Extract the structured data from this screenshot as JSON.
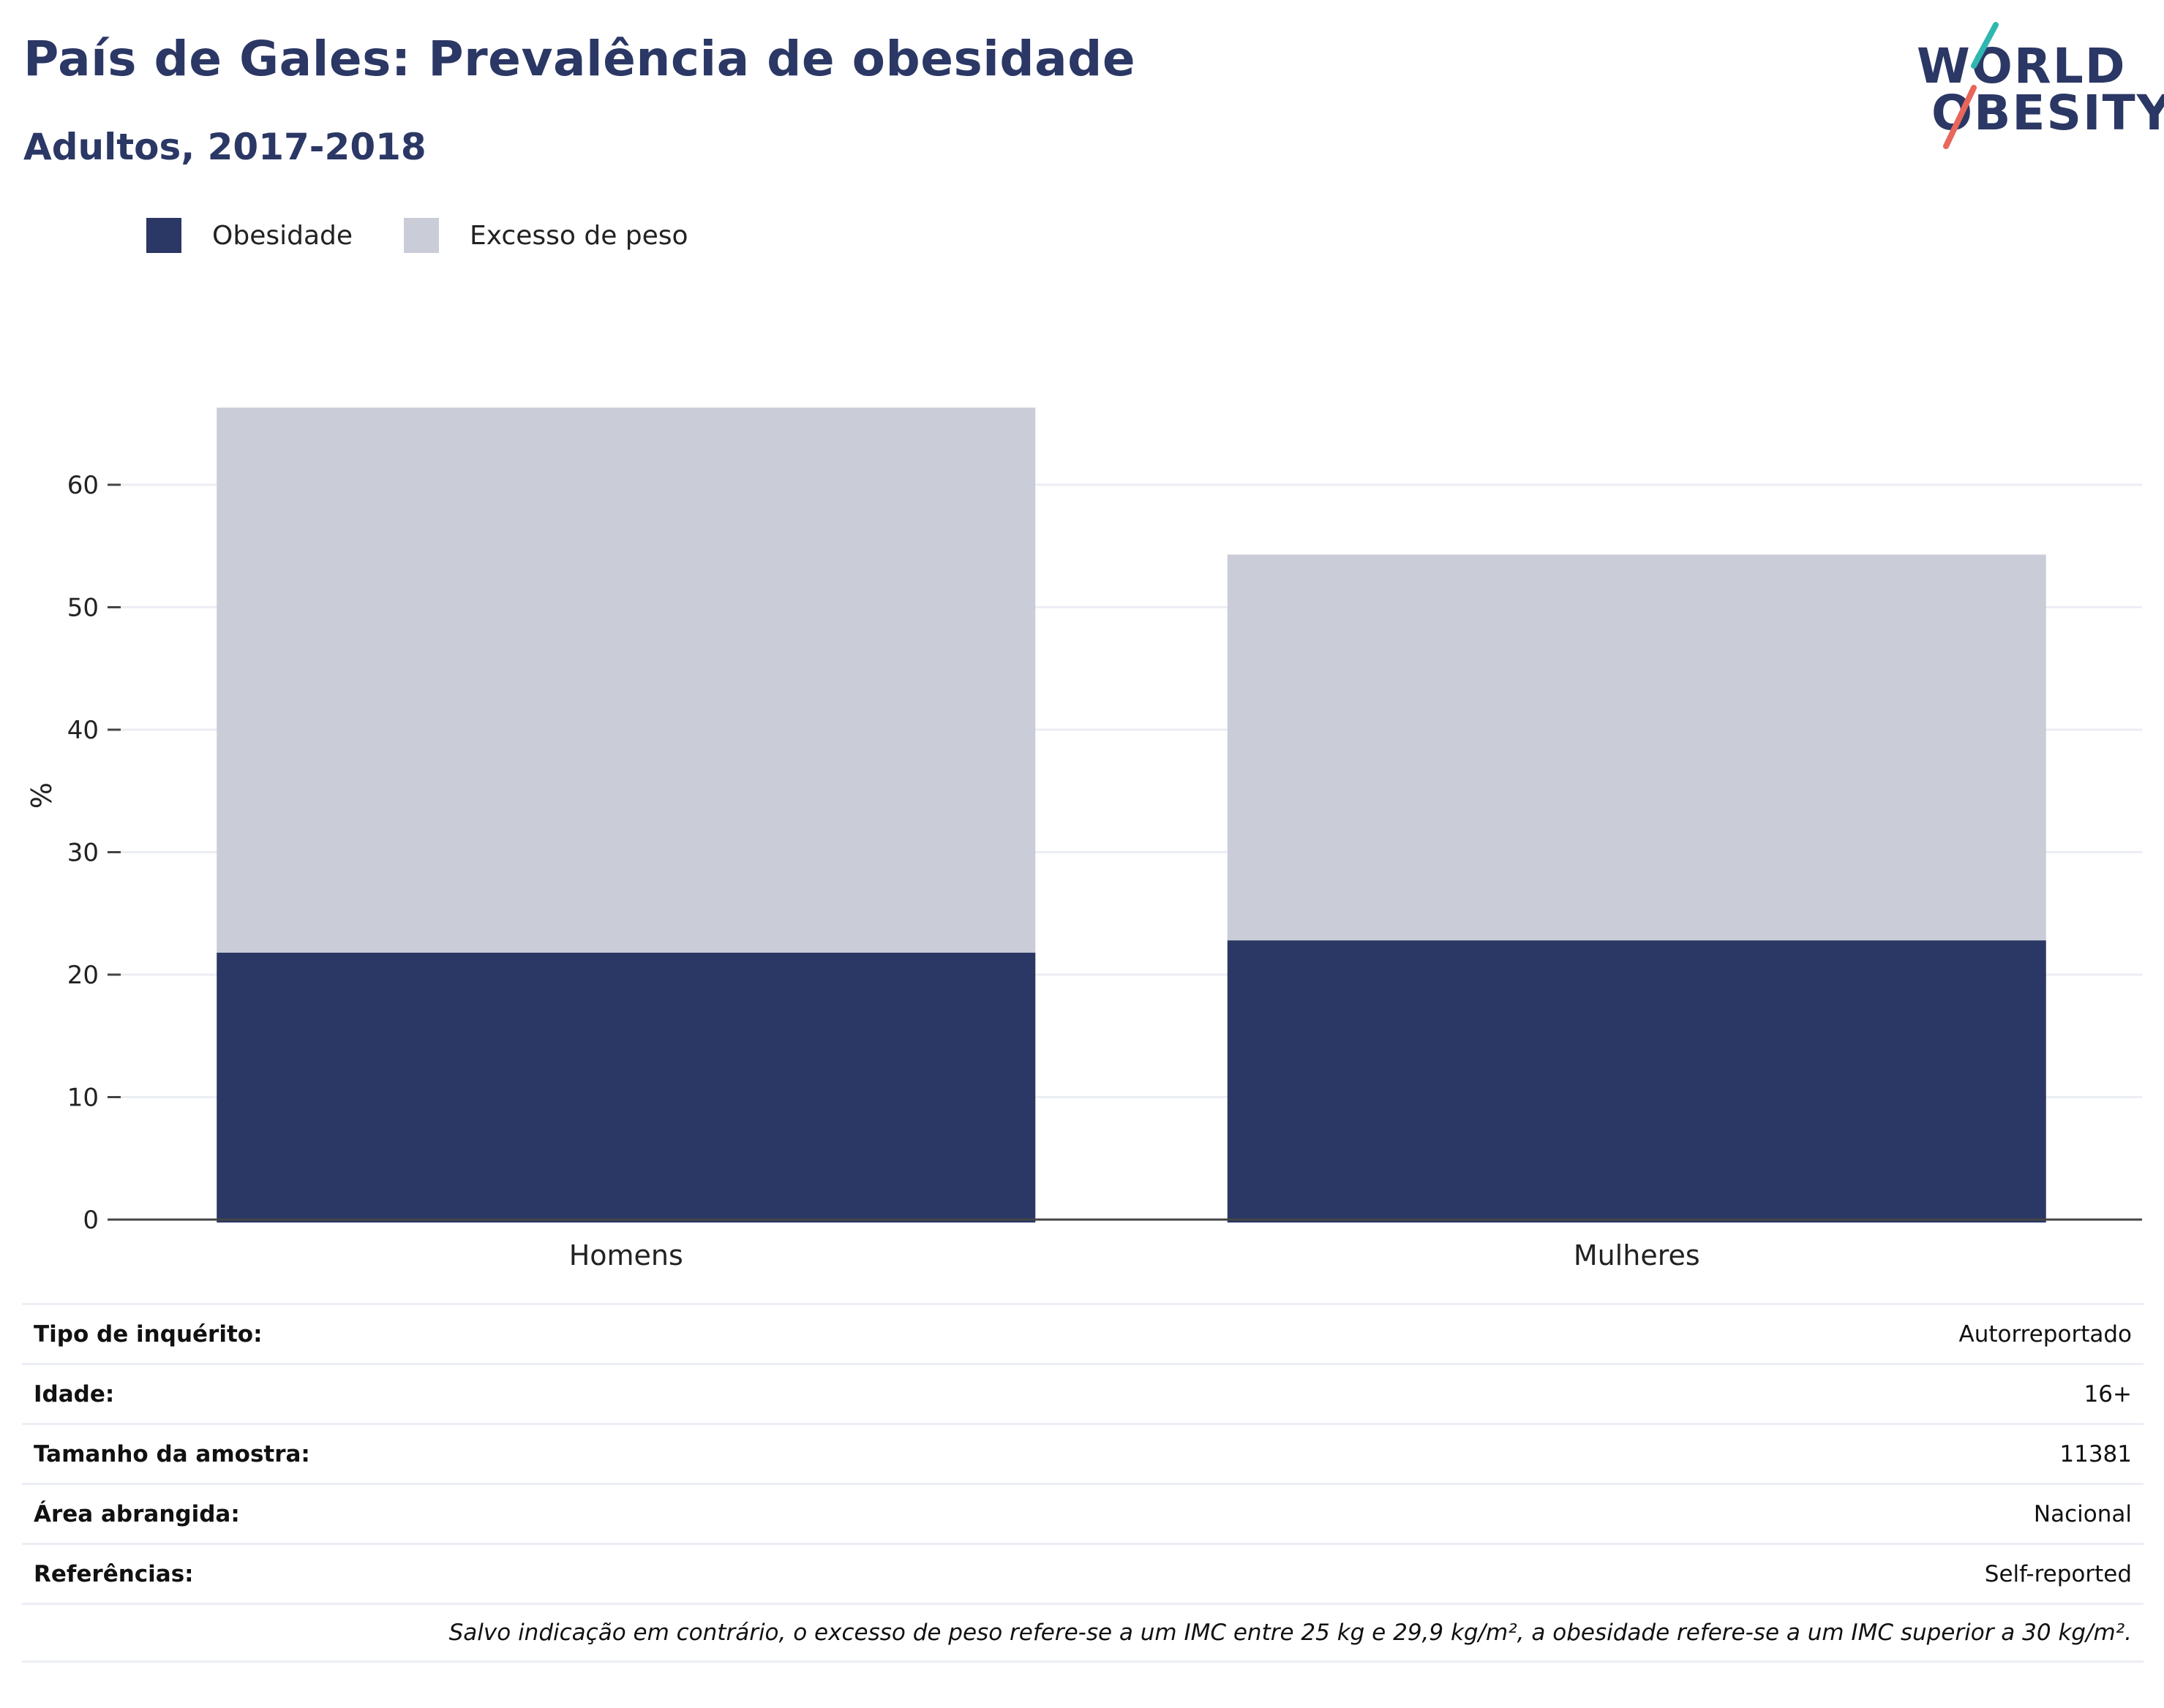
{
  "title": "País de Gales: Prevalência de obesidade",
  "subtitle": "Adultos, 2017-2018",
  "logo": {
    "line1": "WORLD",
    "line2": "OBESITY"
  },
  "colors": {
    "obesity": "#2b3764",
    "overweight": "#cacdd8",
    "title": "#2b3764",
    "grid": "#eceef5",
    "logo_teal": "#2fb7b0",
    "logo_coral": "#e8665a"
  },
  "legend": [
    {
      "label": "Obesidade",
      "color": "#2b3764"
    },
    {
      "label": "Excesso de peso",
      "color": "#cacdd8"
    }
  ],
  "chart_data": {
    "type": "bar",
    "stacked": true,
    "categories": [
      "Homens",
      "Mulheres"
    ],
    "series": [
      {
        "name": "Obesidade",
        "values": [
          21.8,
          22.8
        ]
      },
      {
        "name": "Excesso de peso",
        "values": [
          44.5,
          31.5
        ]
      }
    ],
    "ylabel": "%",
    "xlabel": "",
    "ylim": [
      0,
      70
    ],
    "yticks": [
      0,
      10,
      20,
      30,
      40,
      50,
      60
    ],
    "grid": true,
    "legend_position": "top-left"
  },
  "info_rows": [
    {
      "key": "Tipo de inquérito:",
      "value": "Autorreportado"
    },
    {
      "key": "Idade:",
      "value": "16+"
    },
    {
      "key": "Tamanho da amostra:",
      "value": "11381"
    },
    {
      "key": "Área abrangida:",
      "value": "Nacional"
    },
    {
      "key": "Referências:",
      "value": "Self-reported"
    }
  ],
  "note": "Salvo indicação em contrário, o excesso de peso refere-se a um IMC entre 25 kg e 29,9 kg/m², a obesidade refere-se a um IMC superior a 30 kg/m²."
}
